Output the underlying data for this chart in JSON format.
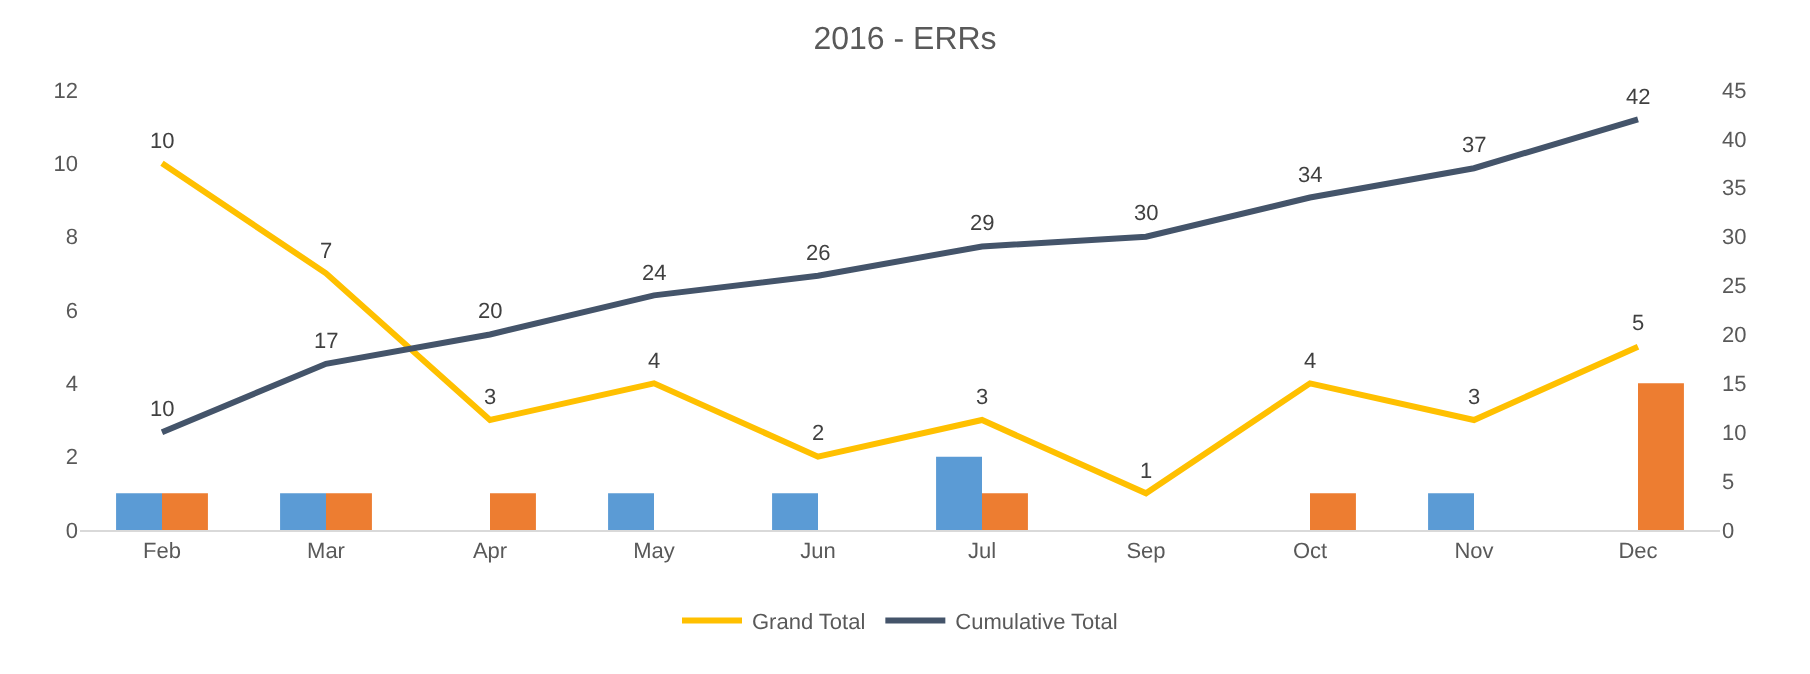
{
  "chart_data": {
    "type": "bar",
    "title": "2016 - ERRs",
    "categories": [
      "Feb",
      "Mar",
      "Apr",
      "May",
      "Jun",
      "Jul",
      "Sep",
      "Oct",
      "Nov",
      "Dec"
    ],
    "series": [
      {
        "color": "#5b9bd5",
        "values": [
          1,
          1,
          null,
          1,
          1,
          2,
          null,
          null,
          1,
          null
        ]
      },
      {
        "color": "#ed7d31",
        "values": [
          1,
          1,
          1,
          null,
          null,
          1,
          null,
          1,
          null,
          4
        ]
      },
      {
        "name": "Grand Total",
        "type": "line",
        "color": "#ffc000",
        "values": [
          10,
          7,
          3,
          4,
          2,
          3,
          1,
          4,
          3,
          5
        ],
        "value_labels": [
          "10",
          "7",
          "3",
          "4",
          "2",
          "3",
          "1",
          "4",
          "3",
          "5"
        ]
      },
      {
        "name": "Cumulative Total",
        "type": "line",
        "axis": "y2",
        "color": "#44546a",
        "values": [
          10,
          17,
          20,
          24,
          26,
          29,
          30,
          34,
          37,
          42
        ],
        "value_labels": [
          "10",
          "17",
          "20",
          "24",
          "26",
          "29",
          "30",
          "34",
          "37",
          "42"
        ]
      }
    ],
    "ylim": [
      0,
      12
    ],
    "yticks": [
      0,
      2,
      4,
      6,
      8,
      10,
      12
    ],
    "y2lim": [
      0,
      45
    ],
    "y2ticks": [
      0,
      5,
      10,
      15,
      20,
      25,
      30,
      35,
      40,
      45
    ],
    "legend": "bottom",
    "marker": "none",
    "line_style": "solid"
  }
}
